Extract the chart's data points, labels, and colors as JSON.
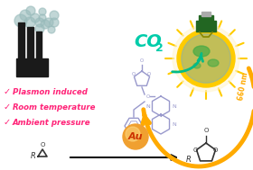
{
  "background_color": "#ffffff",
  "co2_text": "CO",
  "co2_sub": "2",
  "co2_color": "#00ccaa",
  "bullet_points": [
    "Plasmon induced",
    "Room temperature",
    "Ambient pressure"
  ],
  "bullet_color": "#ff2277",
  "check_color": "#ff2277",
  "wavelength_text": "660 nm",
  "wavelength_color": "#ffaa00",
  "au_text": "Au",
  "au_color": "#cc3300",
  "au_bg": "#f0a030",
  "factory_color": "#1a1a1a",
  "smoke_color": "#99bbbb",
  "bulb_body": "#ffcc00",
  "bulb_rays": "#ffcc00",
  "bulb_cap": "#226622",
  "arrow_co2_color": "#00bb88",
  "arrow_main_color": "#ffaa00",
  "mol_color": "#9999cc",
  "struct_color": "#333333",
  "epoxide_label": "R",
  "carbonate_label": "R"
}
